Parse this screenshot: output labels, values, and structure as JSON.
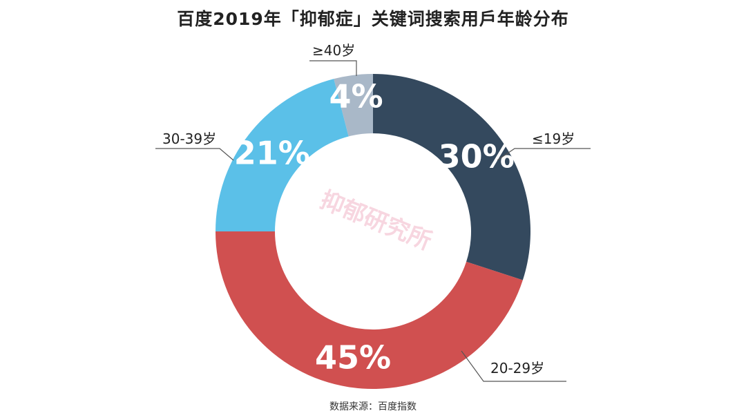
{
  "chart_data": {
    "type": "pie",
    "variant": "donut",
    "title": "百度2019年「抑郁症」关键词搜索用戶年龄分布",
    "categories": [
      "≤19岁",
      "20-29岁",
      "30-39岁",
      "≥40岁"
    ],
    "values": [
      30,
      45,
      21,
      4
    ],
    "value_labels": [
      "30%",
      "45%",
      "21%",
      "4%"
    ],
    "colors": [
      "#34495e",
      "#d05050",
      "#5bc0e8",
      "#a9b8c8"
    ],
    "legend": "none",
    "source": "数据来源：百度指数"
  },
  "watermark": "抑郁研究所"
}
